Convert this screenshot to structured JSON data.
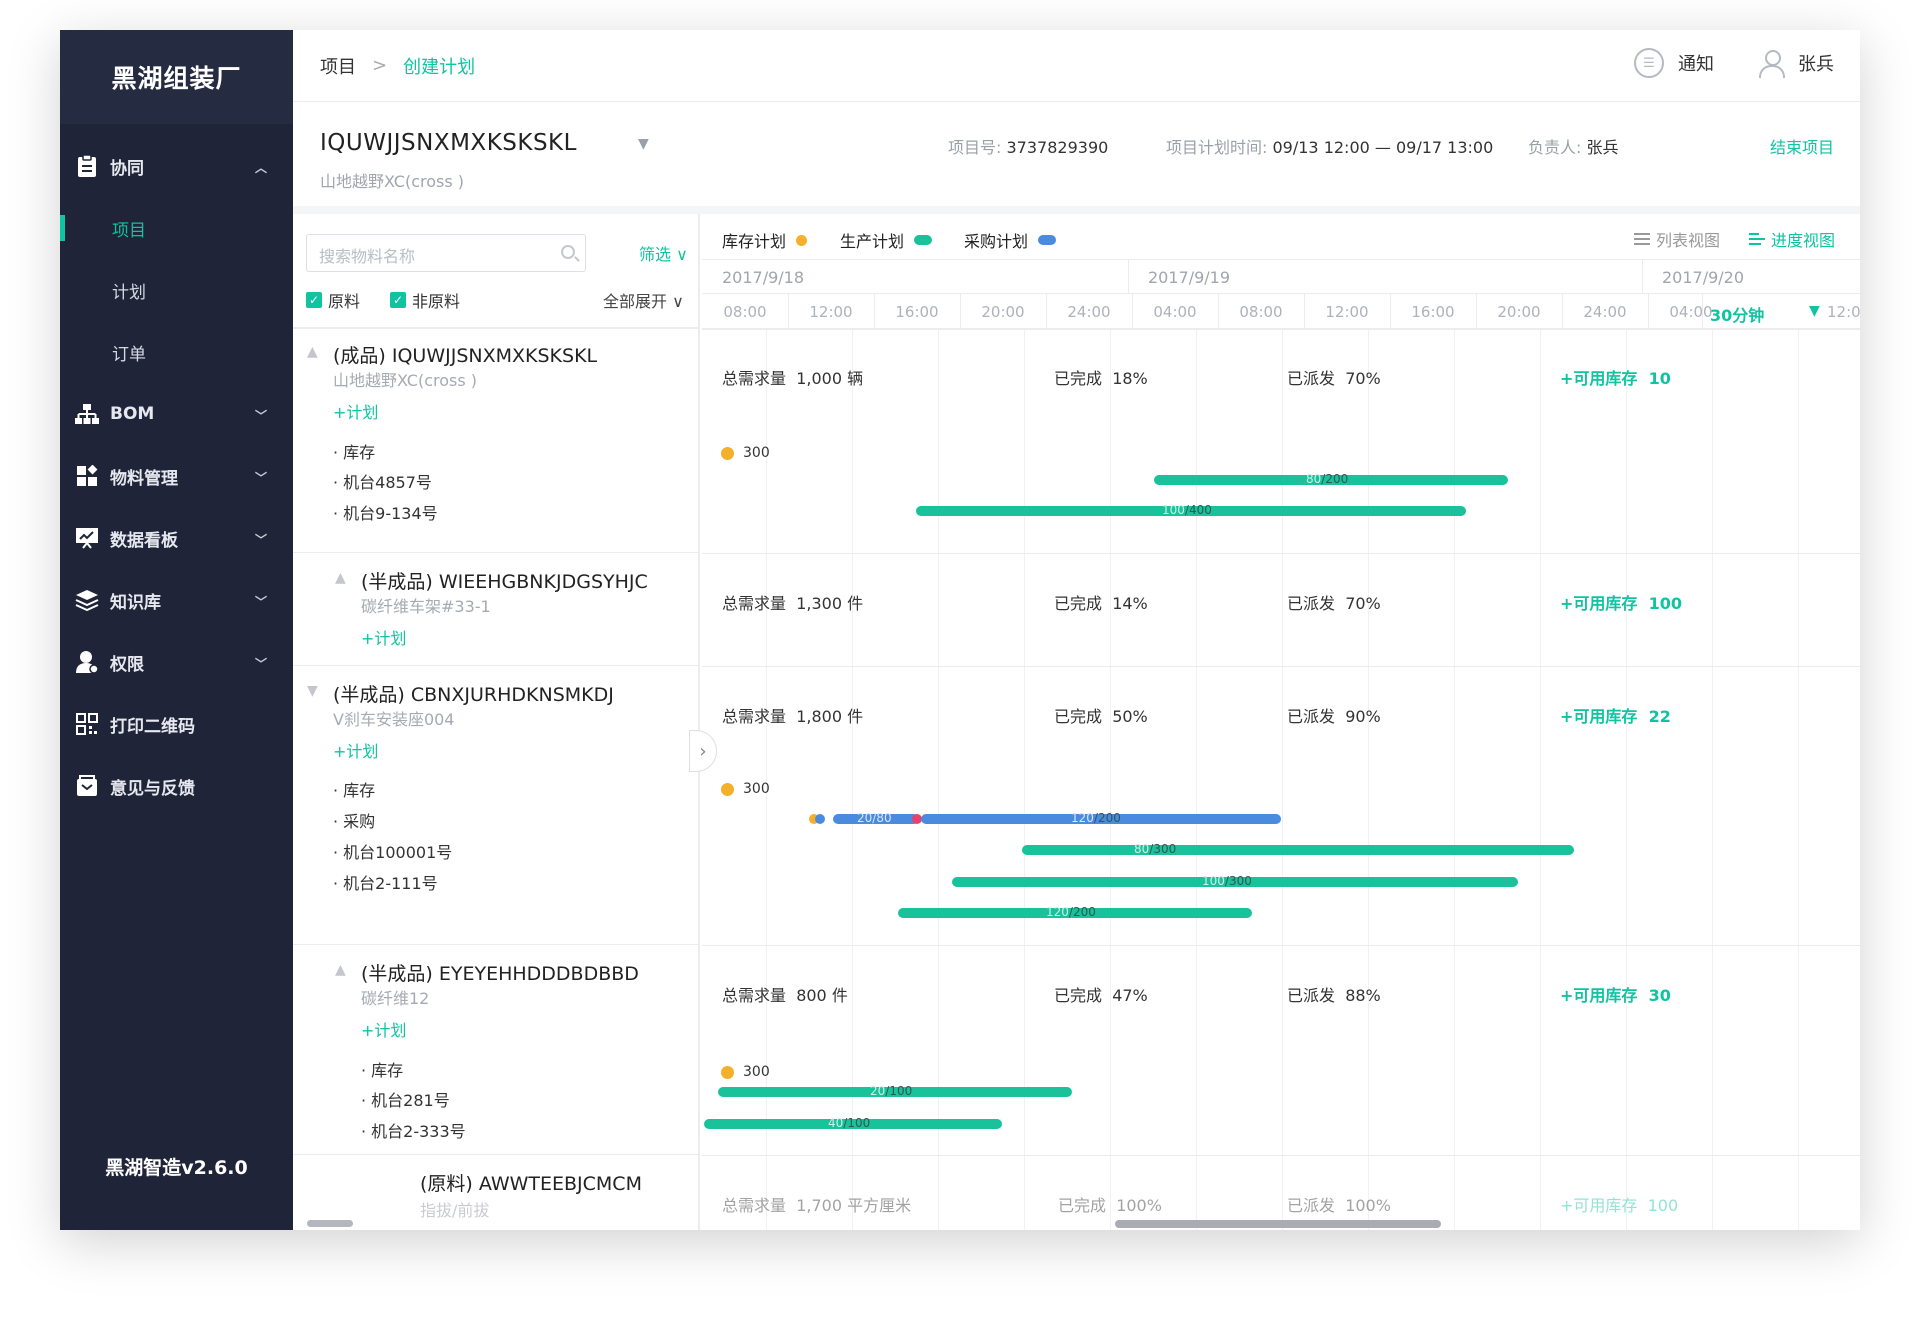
{
  "sidebar": {
    "brand": "黑湖组装厂",
    "version": "黑湖智造v2.6.0",
    "groups": [
      {
        "label": "协同",
        "icon": "clipboard-icon",
        "chevron": "^"
      },
      {
        "label": "BOM",
        "icon": "hierarchy-icon",
        "chevron": "v"
      },
      {
        "label": "物料管理",
        "icon": "widgets-icon",
        "chevron": "v"
      },
      {
        "label": "数据看板",
        "icon": "dashboard-icon",
        "chevron": "v"
      },
      {
        "label": "知识库",
        "icon": "layers-icon",
        "chevron": "v"
      },
      {
        "label": "权限",
        "icon": "user-icon",
        "chevron": "v"
      },
      {
        "label": "打印二维码",
        "icon": "qrcode-icon"
      },
      {
        "label": "意见与反馈",
        "icon": "feedback-icon"
      }
    ],
    "sub_items": [
      {
        "label": "项目",
        "active": true
      },
      {
        "label": "计划",
        "active": false
      },
      {
        "label": "订单",
        "active": false
      }
    ]
  },
  "topbar": {
    "breadcrumb_root": "项目",
    "breadcrumb_sep": ">",
    "breadcrumb_current": "创建计划",
    "notify_label": "通知",
    "user_name": "张兵"
  },
  "project": {
    "name": "IQUWJJSNXMXKSKSKL",
    "sub": "山地越野XC(cross )",
    "id_label": "项目号:",
    "id_value": "3737829390",
    "time_label": "项目计划时间:",
    "time_value": "09/13 12:00 — 09/17 13:00",
    "owner_label": "负责人:",
    "owner_value": "张兵",
    "end_label": "结束项目"
  },
  "filters": {
    "search_placeholder": "搜索物料名称",
    "filter_label": "筛选 ∨",
    "raw_label": "原料",
    "nonraw_label": "非原料",
    "expand_label": "全部展开 ∨"
  },
  "legend": {
    "stock": "库存计划",
    "production": "生产计划",
    "purchase": "采购计划",
    "list_view": "列表视图",
    "progress_view": "进度视图"
  },
  "colors": {
    "accent": "#10c3a1",
    "stock": "#f4b02b",
    "production": "#19c29a",
    "purchase": "#4a8be0",
    "sidebar": "#1f2438"
  },
  "timeline": {
    "dates": [
      "2017/9/18",
      "2017/9/19",
      "2017/9/20"
    ],
    "hours": [
      "08:00",
      "12:00",
      "16:00",
      "20:00",
      "24:00",
      "04:00",
      "08:00",
      "12:00",
      "16:00",
      "20:00",
      "24:00",
      "04:00"
    ],
    "interval": "30分钟",
    "last_hour": "12:0"
  },
  "stat_labels": {
    "demand": "总需求量",
    "done": "已完成",
    "dispatched": "已派发",
    "stock": "+可用库存"
  },
  "plan_link": "+计划",
  "materials": [
    {
      "title": "(成品) IQUWJJSNXMXKSKSKL",
      "sub": "山地越野XC(cross )",
      "sources": [
        "· 库存",
        "· 机台4857号",
        "· 机台9-134号"
      ],
      "demand": "1,000 辆",
      "done": "18%",
      "dispatched": "70%",
      "stock": "10",
      "stock_value": "300",
      "bars": [
        {
          "label_done": "80",
          "label_total": "/200"
        },
        {
          "label_done": "100",
          "label_total": "/400"
        }
      ]
    },
    {
      "title": "(半成品) WIEEHGBNKJDGSYHJC",
      "sub": "碳纤维车架#33-1",
      "sources": [],
      "demand": "1,300 件",
      "done": "14%",
      "dispatched": "70%",
      "stock": "100"
    },
    {
      "title": "(半成品) CBNXJURHDKNSMKDJ",
      "sub": "V刹车安装座004",
      "sources": [
        "· 库存",
        "· 采购",
        "· 机台100001号",
        "· 机台2-111号"
      ],
      "demand": "1,800 件",
      "done": "50%",
      "dispatched": "90%",
      "stock": "22",
      "stock_value": "300",
      "bars": [
        {
          "label_done": "20",
          "label_total": "/80"
        },
        {
          "label_done": "120",
          "label_total": "/200"
        },
        {
          "label_done": "80",
          "label_total": "/300"
        },
        {
          "label_done": "100",
          "label_total": "/300"
        },
        {
          "label_done": "120",
          "label_total": "/200"
        }
      ]
    },
    {
      "title": "(半成品) EYEYEHHDDDBDBBD",
      "sub": "碳纤维12",
      "sources": [
        "· 库存",
        "· 机台281号",
        "· 机台2-333号"
      ],
      "demand": "800 件",
      "done": "47%",
      "dispatched": "88%",
      "stock": "30",
      "stock_value": "300",
      "bars": [
        {
          "label_done": "20",
          "label_total": "/100"
        },
        {
          "label_done": "40",
          "label_total": "/100"
        }
      ]
    },
    {
      "title": "(原料) AWWTEEBJCMCM",
      "sub": "指拔/前拔",
      "sources": [],
      "demand": "1,700 平方厘米",
      "done": "100%",
      "dispatched": "100%",
      "stock": "100"
    }
  ]
}
